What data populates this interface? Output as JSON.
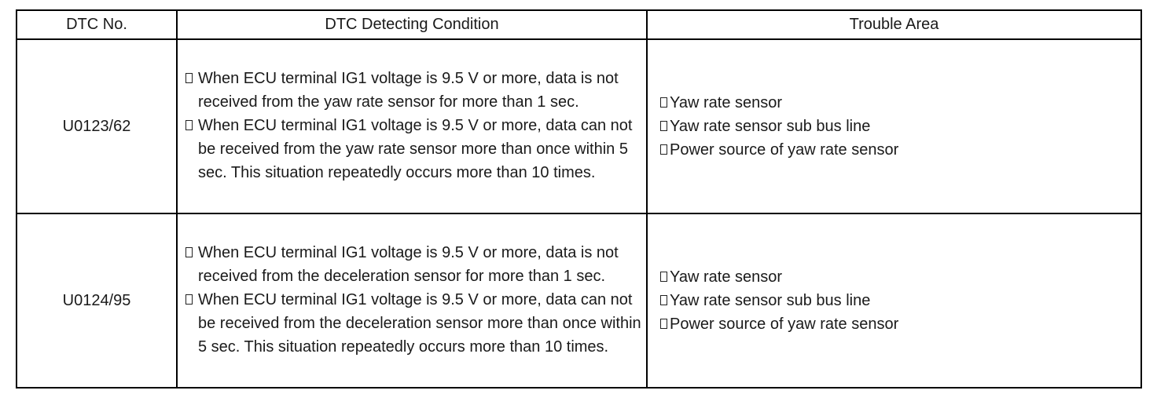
{
  "headers": {
    "dtc_no": "DTC No.",
    "condition": "DTC Detecting Condition",
    "trouble_area": "Trouble Area"
  },
  "rows": [
    {
      "code": "U0123/62",
      "conditions": [
        "When ECU terminal IG1 voltage is 9.5 V or more, data is not received from the yaw rate sensor for more than 1 sec.",
        "When ECU terminal IG1 voltage is 9.5 V or more, data can not be received from the yaw rate sensor more than once within 5 sec. This situation repeatedly occurs more than 10 times."
      ],
      "areas": [
        "Yaw rate sensor",
        "Yaw rate sensor sub bus line",
        "Power source of yaw rate sensor"
      ]
    },
    {
      "code": "U0124/95",
      "conditions": [
        "When ECU terminal IG1 voltage is 9.5 V or more, data is not received from the deceleration sensor for more than 1 sec.",
        "When ECU terminal IG1 voltage is 9.5 V or more, data can not be received from the deceleration sensor more than once within 5 sec. This situation repeatedly occurs more than 10 times."
      ],
      "areas": [
        "Yaw rate sensor",
        "Yaw rate sensor sub bus line",
        "Power source of yaw rate sensor"
      ]
    }
  ]
}
